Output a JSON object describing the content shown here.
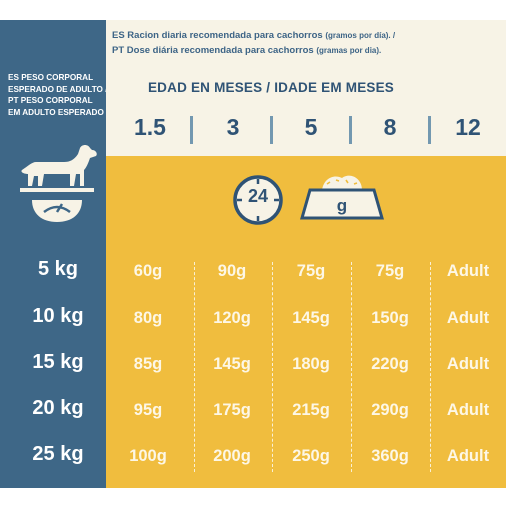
{
  "header": {
    "es_line": "ES Racion diaria recomendada para cachorros",
    "es_unit": "(gramos por día). /",
    "pt_line": "PT Dose diária recomendada para cachorros",
    "pt_unit": "(gramas por dia)."
  },
  "left_header": {
    "line1": "ES PESO CORPORAL",
    "line2": "ESPERADO DE ADULTO /",
    "line3": "PT PESO CORPORAL",
    "line4": "EM ADULTO ESPERADO"
  },
  "age": {
    "title": "EDAD EN MESES / IDADE EM MESES",
    "values": [
      "1.5",
      "3",
      "5",
      "8",
      "12"
    ]
  },
  "icons": {
    "clock_hours": "24",
    "bowl_unit": "g",
    "clock": "clock-icon",
    "bowl": "food-bowl-icon",
    "dog": "dog-on-scale-icon"
  },
  "rows": [
    {
      "weight": "5 kg",
      "cells": [
        "60g",
        "90g",
        "75g",
        "75g",
        "Adult"
      ]
    },
    {
      "weight": "10 kg",
      "cells": [
        "80g",
        "120g",
        "145g",
        "150g",
        "Adult"
      ]
    },
    {
      "weight": "15 kg",
      "cells": [
        "85g",
        "145g",
        "180g",
        "220g",
        "Adult"
      ]
    },
    {
      "weight": "20 kg",
      "cells": [
        "95g",
        "175g",
        "215g",
        "290g",
        "Adult"
      ]
    },
    {
      "weight": "25 kg",
      "cells": [
        "100g",
        "200g",
        "250g",
        "360g",
        "Adult"
      ]
    }
  ],
  "colors": {
    "blue": "#3e6787",
    "navy": "#2f5375",
    "yellow": "#f0bd3e",
    "cream": "#f7f3e6"
  }
}
